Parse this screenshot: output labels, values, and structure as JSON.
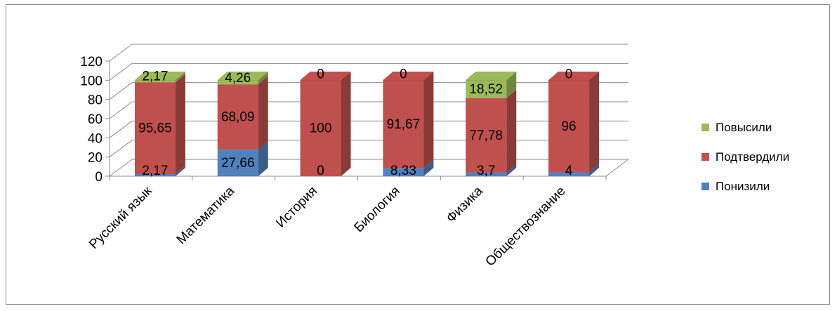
{
  "chart_data": {
    "type": "bar",
    "stacked": true,
    "three_d": true,
    "categories": [
      "Русский язык",
      "Математика",
      "История",
      "Биология",
      "Физика",
      "Обществознание"
    ],
    "series": [
      {
        "name": "Понизили",
        "values": [
          2.17,
          27.66,
          0,
          8.33,
          3.7,
          4
        ],
        "labels": [
          "2,17",
          "27,66",
          "0",
          "8,33",
          "3,7",
          "4"
        ],
        "color": "#4F81BD"
      },
      {
        "name": "Подтвердили",
        "values": [
          95.65,
          68.09,
          100,
          91.67,
          77.78,
          96
        ],
        "labels": [
          "95,65",
          "68,09",
          "100",
          "91,67",
          "77,78",
          "96"
        ],
        "color": "#C0504D"
      },
      {
        "name": "Повысили",
        "values": [
          2.17,
          4.26,
          0,
          0,
          18.52,
          0
        ],
        "labels": [
          "2,17",
          "4,26",
          "0",
          "0",
          "18,52",
          "0"
        ],
        "color": "#9BBB59"
      }
    ],
    "legend_order": [
      "Повысили",
      "Подтвердили",
      "Понизили"
    ],
    "ylim": [
      0,
      120
    ],
    "yticks": [
      "0",
      "20",
      "40",
      "60",
      "80",
      "100",
      "120"
    ],
    "grid": true,
    "legend_position": "right",
    "title": "",
    "xlabel": "",
    "ylabel": ""
  }
}
